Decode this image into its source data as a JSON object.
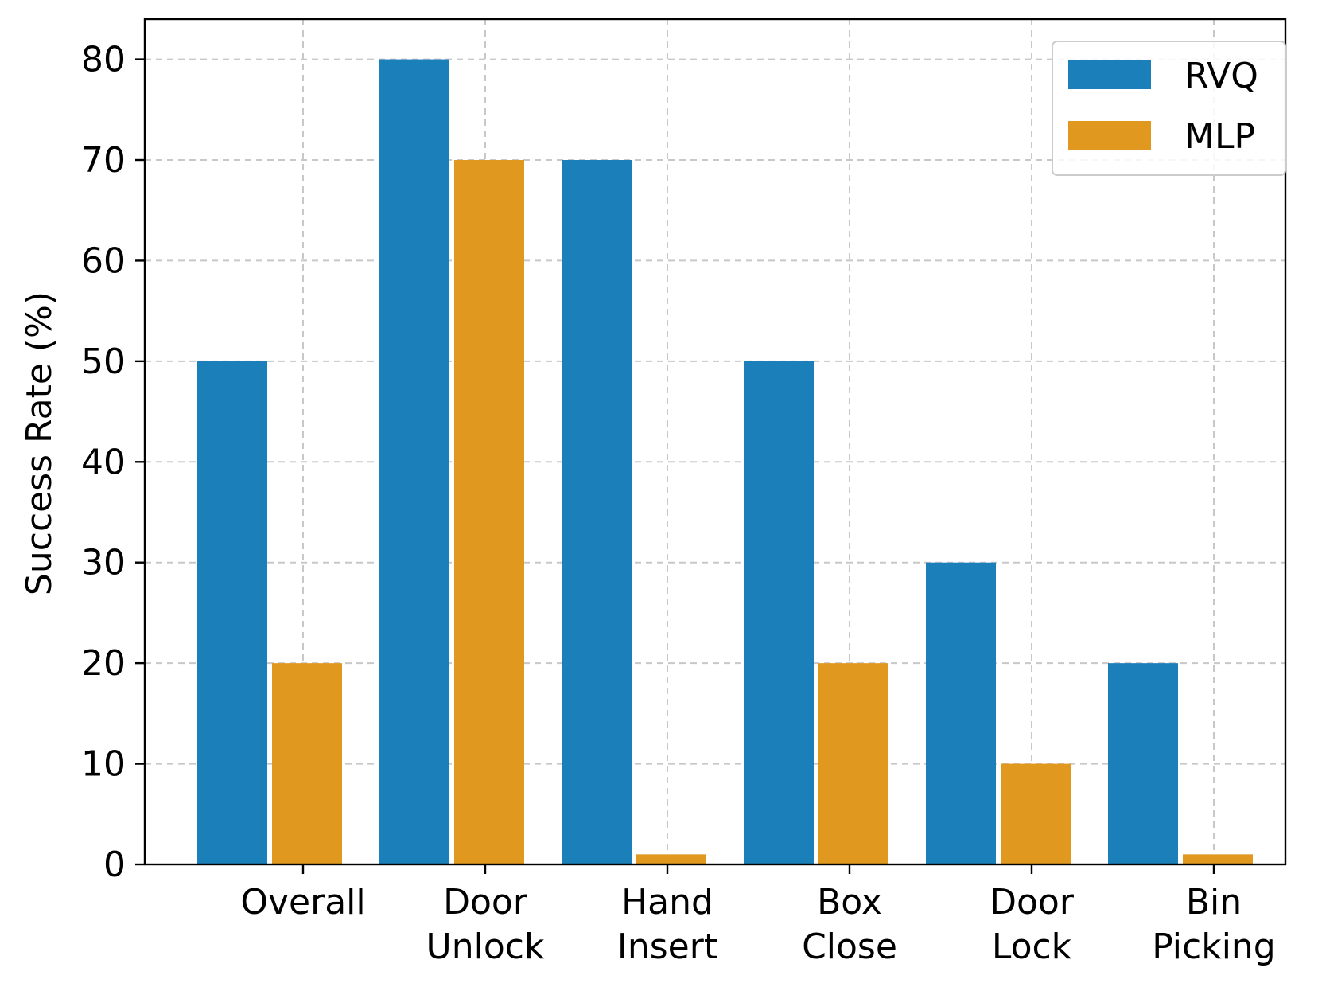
{
  "chart_data": {
    "type": "bar",
    "title": "",
    "xlabel": "",
    "ylabel": "Success Rate (%)",
    "ylim": [
      0,
      84
    ],
    "yticks": [
      0,
      10,
      20,
      30,
      40,
      50,
      60,
      70,
      80
    ],
    "categories": [
      [
        "Overall"
      ],
      [
        "Door",
        "Unlock"
      ],
      [
        "Hand",
        "Insert"
      ],
      [
        "Box",
        "Close"
      ],
      [
        "Door",
        "Lock"
      ],
      [
        "Bin",
        "Picking"
      ]
    ],
    "series": [
      {
        "name": "RVQ",
        "color": "#1b7fba",
        "values": [
          50,
          80,
          70,
          50,
          30,
          20
        ]
      },
      {
        "name": "MLP",
        "color": "#e0981f",
        "values": [
          20,
          70,
          1,
          20,
          10,
          1
        ]
      }
    ],
    "grid": true,
    "legend_position": "top-right"
  }
}
